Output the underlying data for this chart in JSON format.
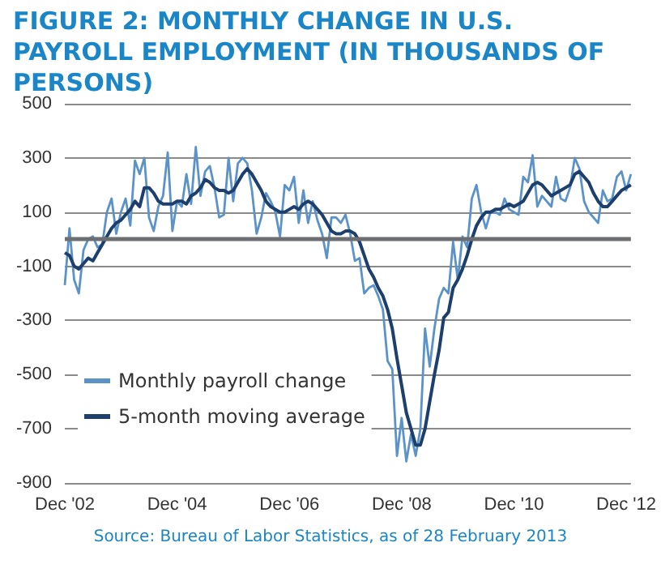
{
  "chart_data": {
    "type": "line",
    "title": "FIGURE 2: MONTHLY CHANGE IN U.S. PAYROLL EMPLOYMENT (IN THOUSANDS OF PERSONS)",
    "annotations": [
      "Source: Bureau of Labor Statistics, as of 28 February 2013"
    ],
    "categories": [
      "Dec '02",
      null,
      null,
      null,
      null,
      null,
      null,
      null,
      null,
      null,
      null,
      null,
      null,
      null,
      null,
      null,
      null,
      null,
      null,
      null,
      null,
      null,
      null,
      null,
      "Dec '04",
      null,
      null,
      null,
      null,
      null,
      null,
      null,
      null,
      null,
      null,
      null,
      null,
      null,
      null,
      null,
      null,
      null,
      null,
      null,
      null,
      null,
      null,
      null,
      "Dec '06",
      null,
      null,
      null,
      null,
      null,
      null,
      null,
      null,
      null,
      null,
      null,
      null,
      null,
      null,
      null,
      null,
      null,
      null,
      null,
      null,
      null,
      null,
      null,
      "Dec '08",
      null,
      null,
      null,
      null,
      null,
      null,
      null,
      null,
      null,
      null,
      null,
      null,
      null,
      null,
      null,
      null,
      null,
      null,
      null,
      null,
      null,
      null,
      null,
      "Dec '10",
      null,
      null,
      null,
      null,
      null,
      null,
      null,
      null,
      null,
      null,
      null,
      null,
      null,
      null,
      null,
      null,
      null,
      null,
      null,
      null,
      null,
      null,
      null,
      "Dec '12",
      null
    ],
    "series": [
      {
        "name": "Monthly payroll change",
        "color": "#5b93c8",
        "values": [
          -170,
          40,
          -150,
          -200,
          -40,
          0,
          10,
          -30,
          -20,
          100,
          150,
          20,
          100,
          150,
          50,
          290,
          240,
          300,
          80,
          30,
          120,
          160,
          320,
          30,
          140,
          120,
          240,
          130,
          340,
          160,
          250,
          270,
          190,
          80,
          90,
          300,
          140,
          280,
          300,
          280,
          180,
          20,
          80,
          170,
          140,
          100,
          10,
          200,
          180,
          230,
          60,
          180,
          60,
          140,
          70,
          20,
          -70,
          80,
          80,
          60,
          90,
          20,
          -80,
          -70,
          -200,
          -180,
          -170,
          -210,
          -260,
          -450,
          -480,
          -800,
          -660,
          -820,
          -720,
          -800,
          -700,
          -330,
          -470,
          -330,
          -220,
          -180,
          -200,
          -10,
          -150,
          10,
          -30,
          150,
          200,
          100,
          40,
          100,
          100,
          90,
          150,
          110,
          100,
          90,
          230,
          210,
          310,
          120,
          160,
          140,
          120,
          230,
          150,
          140,
          190,
          300,
          260,
          140,
          100,
          80,
          60,
          180,
          140,
          150,
          230,
          250,
          180,
          240
        ]
      },
      {
        "name": "5-month moving average",
        "color": "#1c3f6e",
        "values": [
          -50,
          -60,
          -100,
          -110,
          -90,
          -70,
          -80,
          -50,
          -20,
          10,
          40,
          60,
          70,
          90,
          110,
          140,
          120,
          190,
          190,
          170,
          140,
          130,
          130,
          130,
          140,
          140,
          130,
          160,
          170,
          190,
          220,
          210,
          190,
          180,
          180,
          170,
          180,
          210,
          240,
          260,
          240,
          210,
          180,
          140,
          120,
          110,
          100,
          100,
          110,
          120,
          110,
          130,
          140,
          130,
          110,
          90,
          60,
          30,
          20,
          20,
          30,
          30,
          20,
          -10,
          -60,
          -110,
          -140,
          -180,
          -210,
          -260,
          -330,
          -440,
          -540,
          -640,
          -700,
          -760,
          -760,
          -700,
          -600,
          -500,
          -410,
          -290,
          -270,
          -180,
          -150,
          -110,
          -60,
          0,
          50,
          80,
          100,
          100,
          110,
          110,
          120,
          130,
          120,
          130,
          140,
          170,
          200,
          210,
          200,
          180,
          160,
          170,
          180,
          190,
          200,
          240,
          250,
          230,
          210,
          170,
          140,
          120,
          120,
          140,
          160,
          180,
          190,
          200
        ]
      }
    ],
    "ylim": [
      -900,
      500
    ],
    "yticks": [
      -900,
      -700,
      -500,
      -300,
      -100,
      100,
      300,
      500
    ],
    "grid": "y",
    "legend": "bottom left",
    "marker": "none",
    "line_style": "solid",
    "ref_lines": [
      {
        "axis": "y",
        "value": 0,
        "color": "#6d6e71"
      }
    ]
  }
}
